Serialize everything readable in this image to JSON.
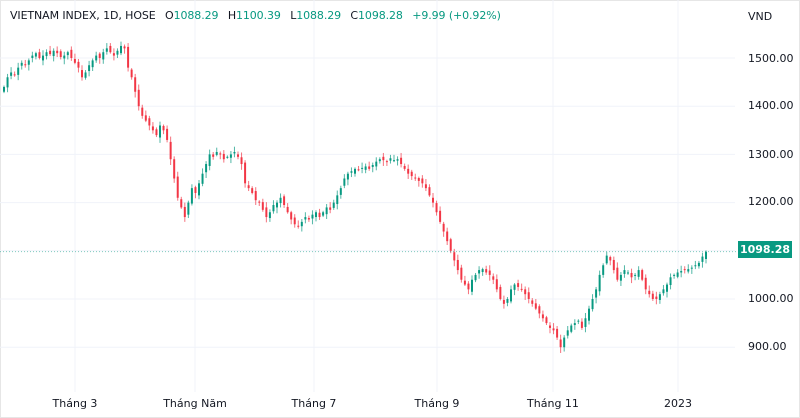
{
  "header": {
    "symbol": "VIETNAM INDEX, 1D, HOSE",
    "open_label": "O",
    "open": "1088.29",
    "high_label": "H",
    "high": "1100.39",
    "low_label": "L",
    "low": "1088.29",
    "close_label": "C",
    "close": "1098.28",
    "change": "+9.99 (+0.92%)"
  },
  "price_axis": {
    "unit": "VND",
    "labels": [
      "1500.00",
      "1400.00",
      "1300.00",
      "1200.00",
      "1000.00",
      "900.00"
    ],
    "last_price": "1098.28"
  },
  "time_axis": {
    "labels": [
      "Tháng 3",
      "Tháng Năm",
      "Tháng 7",
      "Tháng 9",
      "Tháng 11",
      "2023"
    ]
  },
  "colors": {
    "up": "#089981",
    "down": "#f23645",
    "grid": "#f0f3fa",
    "last_line": "#089981"
  },
  "chart_data": {
    "type": "candlestick",
    "title": "VIETNAM INDEX, 1D, HOSE",
    "xlabel": "",
    "ylabel": "VND",
    "ylim": [
      830,
      1600
    ],
    "x_ticks": [
      "Tháng 3",
      "Tháng Năm",
      "Tháng 7",
      "Tháng 9",
      "Tháng 11",
      "2023"
    ],
    "y_ticks": [
      900,
      1000,
      1200,
      1300,
      1400,
      1500
    ],
    "last": {
      "open": 1088.29,
      "high": 1100.39,
      "low": 1088.29,
      "close": 1098.28,
      "change": 9.99,
      "change_pct": 0.92
    },
    "closes": [
      1440,
      1460,
      1470,
      1465,
      1480,
      1490,
      1485,
      1495,
      1505,
      1510,
      1500,
      1505,
      1512,
      1508,
      1515,
      1510,
      1502,
      1505,
      1512,
      1500,
      1490,
      1480,
      1460,
      1470,
      1485,
      1495,
      1505,
      1500,
      1512,
      1520,
      1512,
      1505,
      1515,
      1525,
      1520,
      1480,
      1460,
      1430,
      1400,
      1380,
      1370,
      1360,
      1350,
      1340,
      1360,
      1350,
      1330,
      1290,
      1250,
      1210,
      1190,
      1170,
      1200,
      1230,
      1220,
      1240,
      1260,
      1280,
      1300,
      1295,
      1305,
      1300,
      1290,
      1295,
      1300,
      1305,
      1295,
      1280,
      1240,
      1230,
      1220,
      1205,
      1200,
      1185,
      1170,
      1180,
      1195,
      1200,
      1210,
      1195,
      1180,
      1165,
      1155,
      1150,
      1160,
      1170,
      1165,
      1175,
      1180,
      1170,
      1180,
      1190,
      1185,
      1200,
      1215,
      1230,
      1250,
      1260,
      1265,
      1270,
      1268,
      1272,
      1275,
      1270,
      1278,
      1285,
      1290,
      1288,
      1285,
      1292,
      1288,
      1290,
      1280,
      1270,
      1260,
      1255,
      1250,
      1245,
      1240,
      1230,
      1215,
      1200,
      1180,
      1160,
      1140,
      1120,
      1100,
      1080,
      1060,
      1040,
      1030,
      1020,
      1040,
      1050,
      1060,
      1062,
      1055,
      1050,
      1040,
      1020,
      1000,
      990,
      1000,
      1020,
      1030,
      1025,
      1020,
      1010,
      1000,
      990,
      980,
      970,
      960,
      950,
      940,
      935,
      920,
      900,
      920,
      935,
      945,
      950,
      955,
      940,
      960,
      980,
      1000,
      1020,
      1050,
      1070,
      1090,
      1080,
      1060,
      1040,
      1050,
      1060,
      1055,
      1045,
      1050,
      1060,
      1040,
      1020,
      1010,
      1000,
      1000,
      1010,
      1020,
      1030,
      1045,
      1050,
      1055,
      1058,
      1060,
      1062,
      1065,
      1070,
      1075,
      1088,
      1098
    ]
  }
}
